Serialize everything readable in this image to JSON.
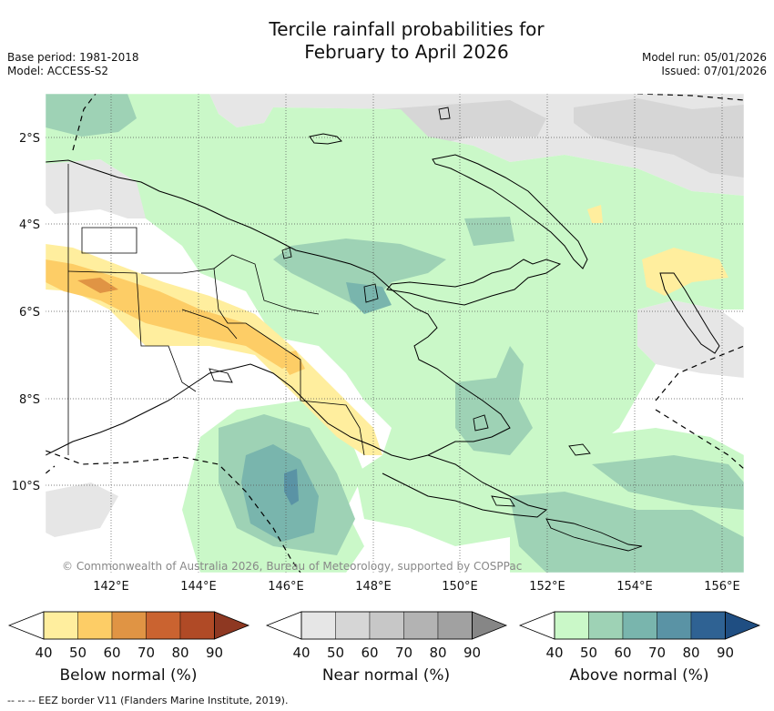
{
  "title": {
    "line1": "Tercile rainfall probabilities for",
    "line2": "February to April 2026"
  },
  "meta": {
    "base_period": "Base period: 1981-2018",
    "model": "Model: ACCESS-S2",
    "model_run": "Model run: 05/01/2026",
    "issued": "Issued: 07/01/2026"
  },
  "map": {
    "region": "Papua New Guinea",
    "lat_labels": [
      "2°S",
      "4°S",
      "6°S",
      "8°S",
      "10°S"
    ],
    "lon_labels": [
      "142°E",
      "144°E",
      "146°E",
      "148°E",
      "150°E",
      "152°E",
      "154°E",
      "156°E"
    ],
    "copyright": "© Commonwealth of Australia 2026, Bureau of Meteorology, supported by COSPPac",
    "colors": {
      "ocean_bg": "#ffffff",
      "coast": "#000000"
    }
  },
  "colorbars": [
    {
      "title": "Below normal (%)",
      "ticks": [
        "40",
        "50",
        "60",
        "70",
        "80",
        "90"
      ],
      "colors": [
        "#ffee9e",
        "#fdcd66",
        "#e09444",
        "#ca6330",
        "#b04a26",
        "#8e3822"
      ]
    },
    {
      "title": "Near normal (%)",
      "ticks": [
        "40",
        "50",
        "60",
        "70",
        "80",
        "90"
      ],
      "colors": [
        "#e6e6e6",
        "#d6d6d6",
        "#c7c7c7",
        "#b3b3b3",
        "#a1a1a1",
        "#868686"
      ]
    },
    {
      "title": "Above normal (%)",
      "ticks": [
        "40",
        "50",
        "60",
        "70",
        "80",
        "90"
      ],
      "colors": [
        "#caf8c8",
        "#9ed2b5",
        "#79b5ad",
        "#5a93a5",
        "#2f6293",
        "#1f4e82"
      ]
    }
  ],
  "footer": "--  --  -- EEZ border V11 (Flanders Marine Institute, 2019)."
}
